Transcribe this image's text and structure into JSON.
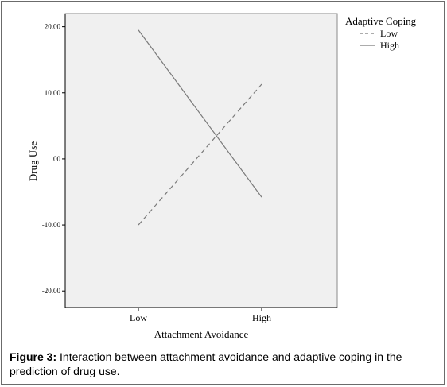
{
  "chart_data": {
    "type": "line",
    "categories": [
      "Low",
      "High"
    ],
    "series": [
      {
        "name": "Low",
        "values": [
          -10.0,
          11.3
        ],
        "style": "dashed"
      },
      {
        "name": "High",
        "values": [
          19.5,
          -5.8
        ],
        "style": "solid"
      }
    ],
    "xlabel": "Attachment Avoidance",
    "ylabel": "Drug Use",
    "ylim": [
      -22.5,
      22
    ],
    "yticks": [
      20,
      10,
      0,
      -10,
      -20
    ],
    "ytick_labels": [
      "20.00",
      "10.00",
      ".00",
      "-10.00",
      "-20.00"
    ],
    "legend_title": "Adaptive Coping",
    "legend_position": "top-right, outside plot",
    "grid": false,
    "colors": {
      "plot_background": "#f0f0f0",
      "line": "#7a7a7a",
      "axis": "#000000"
    }
  },
  "caption": {
    "label": "Figure 3:",
    "text": " Interaction between attachment avoidance and adaptive coping in the prediction of drug use."
  }
}
